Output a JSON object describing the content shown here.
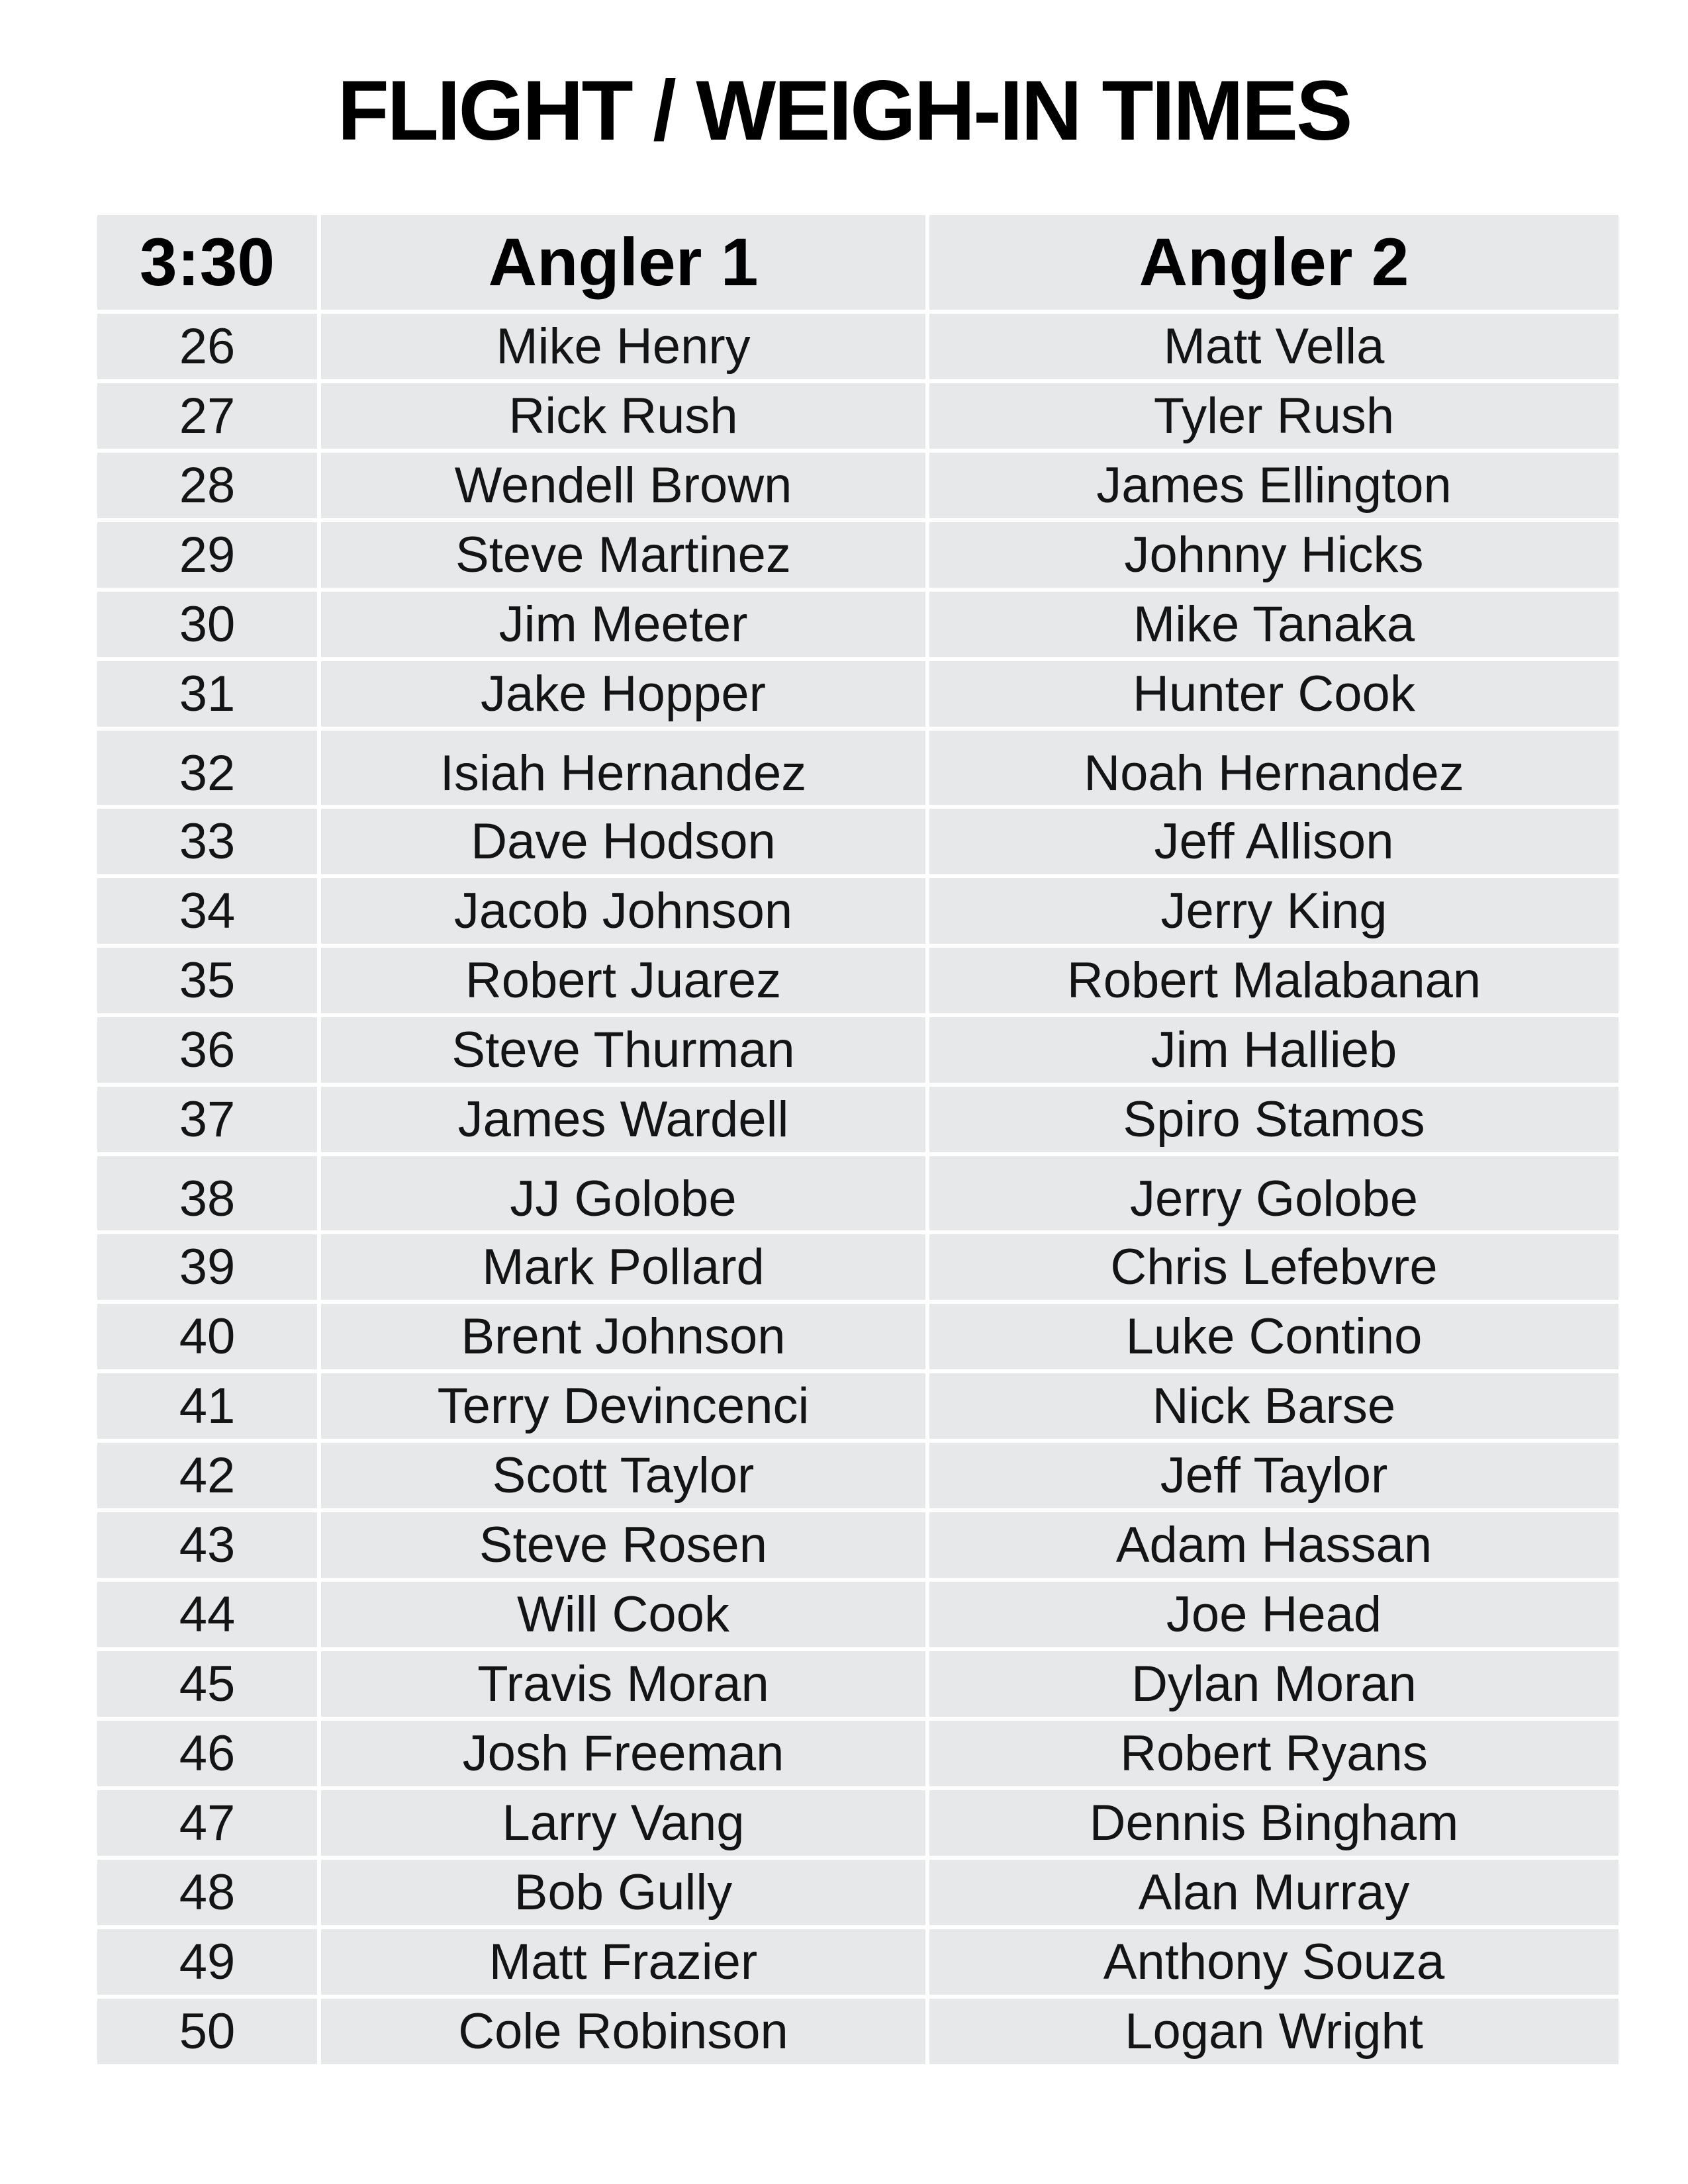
{
  "page": {
    "title": "FLIGHT / WEIGH-IN TIMES"
  },
  "table": {
    "headers": {
      "time": "3:30",
      "angler1": "Angler 1",
      "angler2": "Angler 2"
    },
    "rows": [
      {
        "num": "26",
        "angler1": "Mike Henry",
        "angler2": "Matt Vella"
      },
      {
        "num": "27",
        "angler1": "Rick Rush",
        "angler2": "Tyler Rush"
      },
      {
        "num": "28",
        "angler1": "Wendell Brown",
        "angler2": "James Ellington"
      },
      {
        "num": "29",
        "angler1": "Steve Martinez",
        "angler2": "Johnny Hicks"
      },
      {
        "num": "30",
        "angler1": "Jim Meeter",
        "angler2": "Mike Tanaka"
      },
      {
        "num": "31",
        "angler1": "Jake Hopper",
        "angler2": "Hunter Cook"
      },
      {
        "num": "32",
        "angler1": "Isiah Hernandez",
        "angler2": "Noah Hernandez"
      },
      {
        "num": "33",
        "angler1": "Dave Hodson",
        "angler2": "Jeff Allison"
      },
      {
        "num": "34",
        "angler1": "Jacob Johnson",
        "angler2": "Jerry King"
      },
      {
        "num": "35",
        "angler1": "Robert Juarez",
        "angler2": "Robert Malabanan"
      },
      {
        "num": "36",
        "angler1": "Steve Thurman",
        "angler2": "Jim Hallieb"
      },
      {
        "num": "37",
        "angler1": "James Wardell",
        "angler2": "Spiro Stamos"
      },
      {
        "num": "38",
        "angler1": "JJ Golobe",
        "angler2": "Jerry Golobe"
      },
      {
        "num": "39",
        "angler1": "Mark Pollard",
        "angler2": "Chris Lefebvre"
      },
      {
        "num": "40",
        "angler1": "Brent Johnson",
        "angler2": "Luke Contino"
      },
      {
        "num": "41",
        "angler1": "Terry Devincenci",
        "angler2": "Nick Barse"
      },
      {
        "num": "42",
        "angler1": "Scott Taylor",
        "angler2": "Jeff Taylor"
      },
      {
        "num": "43",
        "angler1": "Steve Rosen",
        "angler2": "Adam Hassan"
      },
      {
        "num": "44",
        "angler1": "Will Cook",
        "angler2": "Joe Head"
      },
      {
        "num": "45",
        "angler1": "Travis Moran",
        "angler2": "Dylan Moran"
      },
      {
        "num": "46",
        "angler1": "Josh Freeman",
        "angler2": "Robert Ryans"
      },
      {
        "num": "47",
        "angler1": "Larry Vang",
        "angler2": "Dennis Bingham"
      },
      {
        "num": "48",
        "angler1": "Bob Gully",
        "angler2": "Alan Murray"
      },
      {
        "num": "49",
        "angler1": "Matt Frazier",
        "angler2": "Anthony Souza"
      },
      {
        "num": "50",
        "angler1": "Cole Robinson",
        "angler2": "Logan Wright"
      }
    ]
  },
  "colors": {
    "page_bg": "#ffffff",
    "cell_bg": "#e6e8ea",
    "grid_gap": "#ffffff",
    "text": "#141414",
    "title_text": "#000000"
  }
}
